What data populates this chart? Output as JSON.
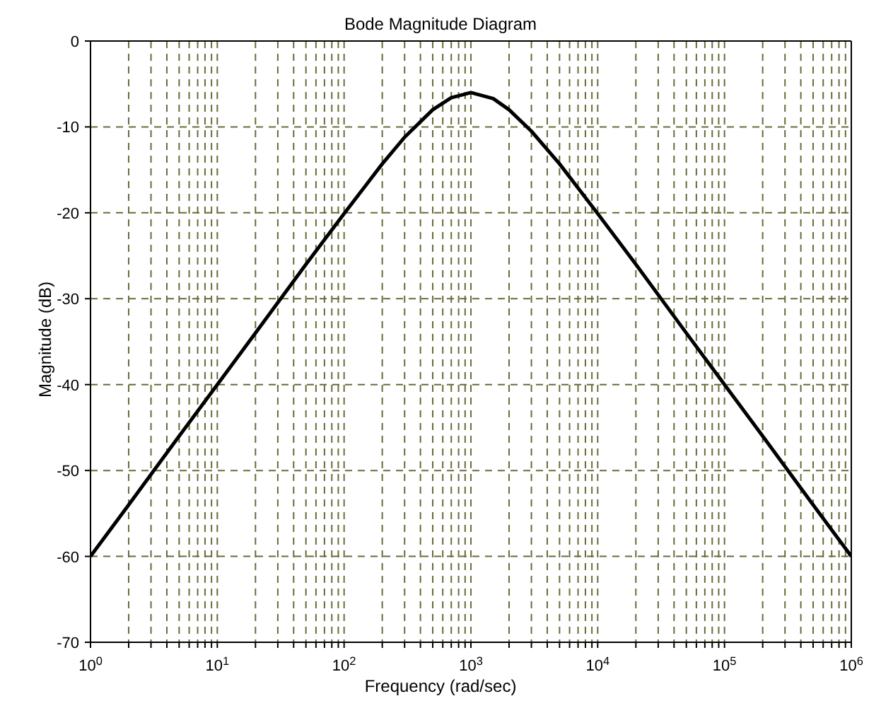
{
  "chart_data": {
    "type": "line",
    "title": "Bode Magnitude Diagram",
    "xlabel": "Frequency (rad/sec)",
    "ylabel": "Magnitude (dB)",
    "log": "x",
    "grid": true,
    "marker": "none",
    "line_style": "solid",
    "x": [
      1,
      2,
      5,
      10,
      20,
      50,
      100,
      200,
      300,
      500,
      700,
      1000,
      1500,
      2000,
      3000,
      5000,
      10000,
      20000,
      50000,
      100000,
      200000,
      500000,
      1000000
    ],
    "series": [
      {
        "color": "#000000",
        "values": [
          -60,
          -54,
          -46,
          -40,
          -34,
          -26,
          -20.1,
          -14.3,
          -11.2,
          -8,
          -6.6,
          -6,
          -6.7,
          -8,
          -10.5,
          -14.3,
          -20.1,
          -26,
          -34,
          -40,
          -46,
          -54,
          -60
        ]
      }
    ],
    "xlim": [
      1,
      1000000
    ],
    "ylim": [
      -70,
      0
    ],
    "yticks": [
      -70,
      -60,
      -50,
      -40,
      -30,
      -20,
      -10,
      0
    ],
    "xticks": [
      {
        "value": 1,
        "label": "10$^{0}$"
      },
      {
        "value": 2,
        "label": null
      },
      {
        "value": 3,
        "label": null
      },
      {
        "value": 4,
        "label": null
      },
      {
        "value": 5,
        "label": null
      },
      {
        "value": 6,
        "label": null
      },
      {
        "value": 7,
        "label": null
      },
      {
        "value": 8,
        "label": null
      },
      {
        "value": 9,
        "label": null
      },
      {
        "value": 10,
        "label": "10$^{1}$"
      },
      {
        "value": 20,
        "label": null
      },
      {
        "value": 30,
        "label": null
      },
      {
        "value": 40,
        "label": null
      },
      {
        "value": 50,
        "label": null
      },
      {
        "value": 60,
        "label": null
      },
      {
        "value": 70,
        "label": null
      },
      {
        "value": 80,
        "label": null
      },
      {
        "value": 90,
        "label": null
      },
      {
        "value": 100,
        "label": "10$^{2}$"
      },
      {
        "value": 200,
        "label": null
      },
      {
        "value": 300,
        "label": null
      },
      {
        "value": 400,
        "label": null
      },
      {
        "value": 500,
        "label": null
      },
      {
        "value": 600,
        "label": null
      },
      {
        "value": 700,
        "label": null
      },
      {
        "value": 800,
        "label": null
      },
      {
        "value": 900,
        "label": null
      },
      {
        "value": 1000,
        "label": "10$^{3}$"
      },
      {
        "value": 2000,
        "label": null
      },
      {
        "value": 3000,
        "label": null
      },
      {
        "value": 4000,
        "label": null
      },
      {
        "value": 5000,
        "label": null
      },
      {
        "value": 6000,
        "label": null
      },
      {
        "value": 7000,
        "label": null
      },
      {
        "value": 8000,
        "label": null
      },
      {
        "value": 9000,
        "label": null
      },
      {
        "value": 10000,
        "label": "10$^{4}$"
      },
      {
        "value": 20000,
        "label": null
      },
      {
        "value": 30000,
        "label": null
      },
      {
        "value": 40000,
        "label": null
      },
      {
        "value": 50000,
        "label": null
      },
      {
        "value": 60000,
        "label": null
      },
      {
        "value": 70000,
        "label": null
      },
      {
        "value": 80000,
        "label": null
      },
      {
        "value": 90000,
        "label": null
      },
      {
        "value": 100000,
        "label": "10$^{5}$"
      },
      {
        "value": 200000,
        "label": null
      },
      {
        "value": 300000,
        "label": null
      },
      {
        "value": 400000,
        "label": null
      },
      {
        "value": 500000,
        "label": null
      },
      {
        "value": 600000,
        "label": null
      },
      {
        "value": 700000,
        "label": null
      },
      {
        "value": 800000,
        "label": null
      },
      {
        "value": 900000,
        "label": null
      },
      {
        "value": 1000000,
        "label": "10$^{6}$"
      }
    ]
  }
}
